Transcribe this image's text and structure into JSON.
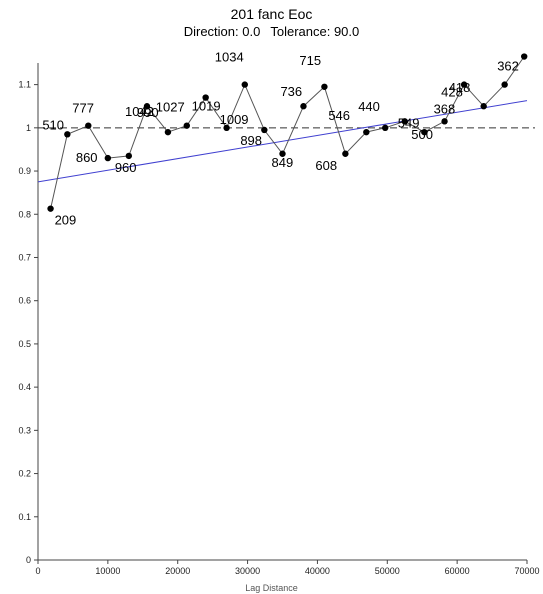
{
  "chart_data": {
    "type": "scatter",
    "title": "201 fanc Eoc",
    "subtitle": {
      "direction_label": "Direction:",
      "direction_value": "0.0",
      "tolerance_label": "Tolerance:",
      "tolerance_value": "90.0"
    },
    "xlabel": "Lag Distance",
    "ylabel": "",
    "xlim": [
      0,
      70000
    ],
    "ylim": [
      0,
      1.15
    ],
    "xticks": [
      0,
      10000,
      20000,
      30000,
      40000,
      50000,
      60000,
      70000
    ],
    "yticks": [
      0,
      0.1,
      0.2,
      0.3,
      0.4,
      0.5,
      0.6,
      0.7,
      0.8,
      0.9,
      1,
      1.1
    ],
    "grid": false,
    "sill_line": 1.0,
    "trend_line": {
      "x": [
        0,
        70000
      ],
      "y": [
        0.875,
        1.063
      ],
      "color": "#4040d0"
    },
    "series": [
      {
        "color": "#555555",
        "x": [
          1800,
          4200,
          7200,
          10000,
          13000,
          15600,
          18600,
          21300,
          24000,
          27000,
          29600,
          32400,
          35000,
          38000,
          41000,
          44000,
          47000,
          49700,
          52500,
          55300,
          58200,
          61000,
          63800,
          66800,
          69600
        ],
        "y": [
          0.813,
          0.985,
          1.005,
          0.93,
          0.935,
          1.05,
          0.99,
          1.005,
          1.07,
          1.0,
          1.1,
          0.995,
          0.94,
          1.05,
          1.095,
          0.94,
          0.99,
          1.0,
          1.015,
          0.99,
          1.015,
          1.1,
          1.05,
          1.1,
          1.165
        ],
        "labels": [
          "209",
          "510",
          "777",
          "860",
          "960",
          "1042",
          "990",
          "1027",
          "1019",
          "1009",
          "1034",
          "898",
          "849",
          "736",
          "715",
          "608",
          "546",
          "440",
          "549",
          "500",
          "368",
          "428",
          "418",
          "",
          "362"
        ]
      }
    ]
  }
}
